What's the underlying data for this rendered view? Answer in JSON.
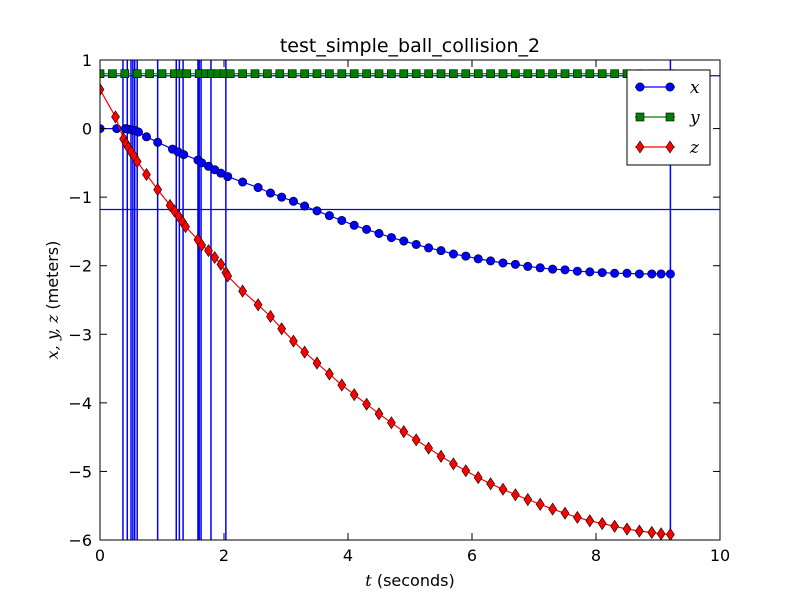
{
  "chart_data": {
    "type": "line",
    "title": "test_simple_ball_collision_2",
    "xlabel": "$t$ (seconds)",
    "xlabel_parts": {
      "var": "t",
      "rest": " (seconds)"
    },
    "ylabel": "$x, y, z$ (meters)",
    "ylabel_parts": {
      "var": "x, y, z",
      "rest": " (meters)"
    },
    "xlim": [
      0,
      10
    ],
    "ylim": [
      -6,
      1
    ],
    "xticks": [
      "0",
      "2",
      "4",
      "6",
      "8",
      "10"
    ],
    "yticks": [
      "1",
      "0",
      "−1",
      "−2",
      "−3",
      "−4",
      "−5",
      "−6"
    ],
    "grid": false,
    "legend_position": "top-right",
    "series": [
      {
        "name": "x",
        "color": "#0000ff",
        "marker": "circle",
        "x": [
          0,
          0.27,
          0.41,
          0.46,
          0.52,
          0.57,
          0.62,
          0.75,
          0.93,
          1.17,
          1.26,
          1.35,
          1.58,
          1.64,
          1.75,
          1.85,
          1.95,
          2.06,
          2.3,
          2.55,
          2.75,
          2.93,
          3.12,
          3.3,
          3.5,
          3.7,
          3.9,
          4.1,
          4.3,
          4.5,
          4.7,
          4.9,
          5.1,
          5.3,
          5.5,
          5.7,
          5.9,
          6.1,
          6.3,
          6.5,
          6.7,
          6.9,
          7.1,
          7.3,
          7.5,
          7.7,
          7.9,
          8.1,
          8.3,
          8.5,
          8.7,
          8.9,
          9.05,
          9.2
        ],
        "y": [
          0.0,
          0.0,
          0.0,
          -0.01,
          -0.02,
          -0.03,
          -0.05,
          -0.12,
          -0.2,
          -0.3,
          -0.34,
          -0.38,
          -0.46,
          -0.5,
          -0.55,
          -0.6,
          -0.65,
          -0.7,
          -0.78,
          -0.86,
          -0.94,
          -1.0,
          -1.06,
          -1.13,
          -1.2,
          -1.27,
          -1.34,
          -1.41,
          -1.47,
          -1.53,
          -1.59,
          -1.64,
          -1.69,
          -1.74,
          -1.78,
          -1.83,
          -1.86,
          -1.9,
          -1.93,
          -1.96,
          -1.98,
          -2.01,
          -2.03,
          -2.05,
          -2.06,
          -2.08,
          -2.09,
          -2.1,
          -2.11,
          -2.11,
          -2.12,
          -2.12,
          -2.12,
          -2.12
        ]
      },
      {
        "name": "y",
        "color": "#008000",
        "marker": "square",
        "x": [
          0,
          0.2,
          0.4,
          0.6,
          0.8,
          1.0,
          1.2,
          1.3,
          1.4,
          1.6,
          1.7,
          1.8,
          1.9,
          2.0,
          2.1,
          2.3,
          2.5,
          2.7,
          2.9,
          3.1,
          3.3,
          3.5,
          3.7,
          3.9,
          4.1,
          4.3,
          4.5,
          4.7,
          4.9,
          5.1,
          5.3,
          5.5,
          5.7,
          5.9,
          6.1,
          6.3,
          6.5,
          6.7,
          6.9,
          7.1,
          7.3,
          7.5,
          7.7,
          7.9,
          8.1,
          8.3,
          8.5,
          8.7,
          8.9,
          9.05,
          9.2
        ],
        "y": [
          0.8,
          0.8,
          0.8,
          0.8,
          0.8,
          0.8,
          0.8,
          0.8,
          0.8,
          0.8,
          0.8,
          0.8,
          0.8,
          0.8,
          0.8,
          0.8,
          0.8,
          0.8,
          0.8,
          0.8,
          0.8,
          0.8,
          0.8,
          0.8,
          0.8,
          0.8,
          0.8,
          0.8,
          0.8,
          0.8,
          0.8,
          0.8,
          0.8,
          0.8,
          0.8,
          0.8,
          0.8,
          0.8,
          0.8,
          0.8,
          0.8,
          0.8,
          0.8,
          0.8,
          0.8,
          0.8,
          0.8,
          0.8,
          0.8,
          0.8,
          0.8
        ]
      },
      {
        "name": "z",
        "color": "#ff0000",
        "marker": "diamond",
        "x": [
          0,
          0.25,
          0.38,
          0.42,
          0.46,
          0.5,
          0.55,
          0.6,
          0.75,
          0.93,
          1.13,
          1.2,
          1.27,
          1.33,
          1.38,
          1.58,
          1.64,
          1.75,
          1.85,
          1.95,
          2.03,
          2.06,
          2.3,
          2.55,
          2.75,
          2.93,
          3.12,
          3.3,
          3.5,
          3.7,
          3.9,
          4.1,
          4.3,
          4.5,
          4.7,
          4.9,
          5.1,
          5.3,
          5.5,
          5.7,
          5.9,
          6.1,
          6.3,
          6.5,
          6.7,
          6.9,
          7.1,
          7.3,
          7.5,
          7.7,
          7.9,
          8.1,
          8.3,
          8.5,
          8.7,
          8.9,
          9.05,
          9.2
        ],
        "y": [
          0.57,
          0.17,
          -0.15,
          -0.22,
          -0.28,
          -0.34,
          -0.4,
          -0.48,
          -0.67,
          -0.89,
          -1.12,
          -1.2,
          -1.28,
          -1.36,
          -1.43,
          -1.62,
          -1.7,
          -1.78,
          -1.88,
          -1.98,
          -2.1,
          -2.15,
          -2.37,
          -2.57,
          -2.74,
          -2.92,
          -3.1,
          -3.26,
          -3.42,
          -3.58,
          -3.74,
          -3.88,
          -4.02,
          -4.16,
          -4.29,
          -4.42,
          -4.54,
          -4.66,
          -4.78,
          -4.89,
          -4.99,
          -5.09,
          -5.18,
          -5.26,
          -5.34,
          -5.41,
          -5.48,
          -5.55,
          -5.61,
          -5.67,
          -5.72,
          -5.76,
          -5.8,
          -5.84,
          -5.87,
          -5.89,
          -5.91,
          -5.92
        ]
      }
    ],
    "reference_lines": {
      "color": "#0000ff",
      "vertical_x": [
        0.37,
        0.44,
        0.5,
        0.53,
        0.56,
        0.6,
        0.93,
        1.23,
        1.28,
        1.34,
        1.58,
        1.6,
        1.63,
        1.79,
        2.03,
        9.2
      ],
      "horizontal_y": [
        -1.18,
        0.77
      ]
    }
  }
}
